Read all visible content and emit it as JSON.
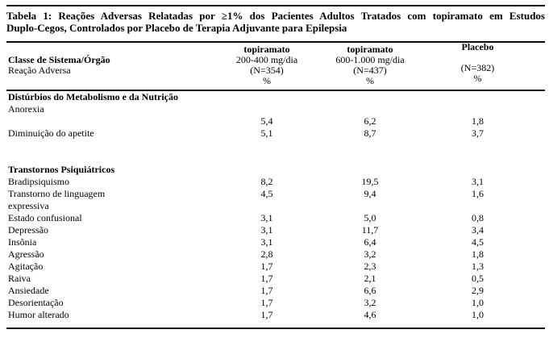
{
  "table": {
    "title_line1": "Tabela 1: Reações Adversas Relatadas por ≥1% dos Pacientes Adultos Tratados com topiramato em Estudos",
    "title_line2": "Duplo-Cegos, Controlados por Placebo de Terapia Adjuvante para Epilepsia",
    "header": {
      "col1_line1": "Classe de Sistema/Órgão",
      "col1_line2": "Reação Adversa",
      "col2": {
        "drug": "topiramato",
        "dose": "200-400 mg/dia",
        "n": "(N=354)",
        "unit": "%"
      },
      "col3": {
        "drug": "topiramato",
        "dose": "600-1.000 mg/dia",
        "n": "(N=437)",
        "unit": "%"
      },
      "col4": {
        "drug": "Placebo",
        "dose": "",
        "n": "(N=382)",
        "unit": "%"
      }
    },
    "sections": [
      {
        "name": "Distúrbios do Metabolismo e da Nutrição",
        "rows": [
          {
            "label": "Anorexia",
            "v1": "",
            "v2": "",
            "v3": ""
          },
          {
            "label": "",
            "v1": "5,4",
            "v2": "6,2",
            "v3": "1,8"
          },
          {
            "label": "Diminuição do apetite",
            "v1": "5,1",
            "v2": "8,7",
            "v3": "3,7"
          }
        ]
      },
      {
        "name": "Transtornos Psiquiátricos",
        "rows": [
          {
            "label": "Bradipsiquismo",
            "v1": "8,2",
            "v2": "19,5",
            "v3": "3,1"
          },
          {
            "label": "Transtorno de linguagem",
            "v1": "4,5",
            "v2": "9,4",
            "v3": "1,6"
          },
          {
            "label": "expressiva",
            "v1": "",
            "v2": "",
            "v3": ""
          },
          {
            "label": "Estado confusional",
            "v1": "3,1",
            "v2": "5,0",
            "v3": "0,8"
          },
          {
            "label": "Depressão",
            "v1": "3,1",
            "v2": "11,7",
            "v3": "3,4"
          },
          {
            "label": "Insônia",
            "v1": "3,1",
            "v2": "6,4",
            "v3": "4,5"
          },
          {
            "label": "Agressão",
            "v1": "2,8",
            "v2": "3,2",
            "v3": "1,8"
          },
          {
            "label": "Agitação",
            "v1": "1,7",
            "v2": "2,3",
            "v3": "1,3"
          },
          {
            "label": "Raiva",
            "v1": "1,7",
            "v2": "2,1",
            "v3": "0,5"
          },
          {
            "label": "Ansiedade",
            "v1": "1,7",
            "v2": "6,6",
            "v3": "2,9"
          },
          {
            "label": "Desorientação",
            "v1": "1,7",
            "v2": "3,2",
            "v3": "1,0"
          },
          {
            "label": "Humor alterado",
            "v1": "1,7",
            "v2": "4,6",
            "v3": "1,0"
          }
        ]
      }
    ]
  }
}
